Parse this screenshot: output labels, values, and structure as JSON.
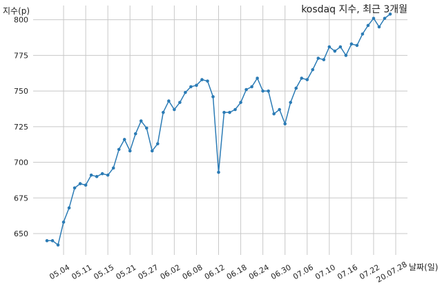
{
  "chart_data": {
    "type": "line",
    "title": "kosdaq 지수, 최근 3개월",
    "xlabel": "날짜(일)",
    "ylabel": "지수(p)",
    "ylim": [
      635,
      810
    ],
    "yticks": [
      650,
      675,
      700,
      725,
      750,
      775,
      800
    ],
    "grid": true,
    "line_color": "#2b7bb5",
    "xtick_labels": [
      "05.04",
      "05.11",
      "05.15",
      "05.21",
      "05.27",
      "06.02",
      "06.08",
      "06.12",
      "06.18",
      "06.24",
      "06.30",
      "07.06",
      "07.10",
      "07.16",
      "07.22",
      "20.07.28"
    ],
    "xtick_index": [
      3,
      7,
      11,
      15,
      19,
      23,
      27,
      31,
      35,
      39,
      43,
      47,
      51,
      55,
      59,
      63
    ],
    "values": [
      645,
      645,
      642,
      658,
      668,
      682,
      685,
      684,
      691,
      690,
      692,
      691,
      696,
      709,
      716,
      708,
      720,
      729,
      724,
      708,
      713,
      735,
      743,
      737,
      742,
      749,
      753,
      754,
      758,
      757,
      746,
      693,
      735,
      735,
      737,
      742,
      751,
      753,
      759,
      750,
      750,
      734,
      737,
      727,
      742,
      752,
      759,
      758,
      765,
      773,
      772,
      781,
      778,
      781,
      775,
      783,
      782,
      790,
      796,
      801,
      795,
      801,
      804
    ]
  }
}
